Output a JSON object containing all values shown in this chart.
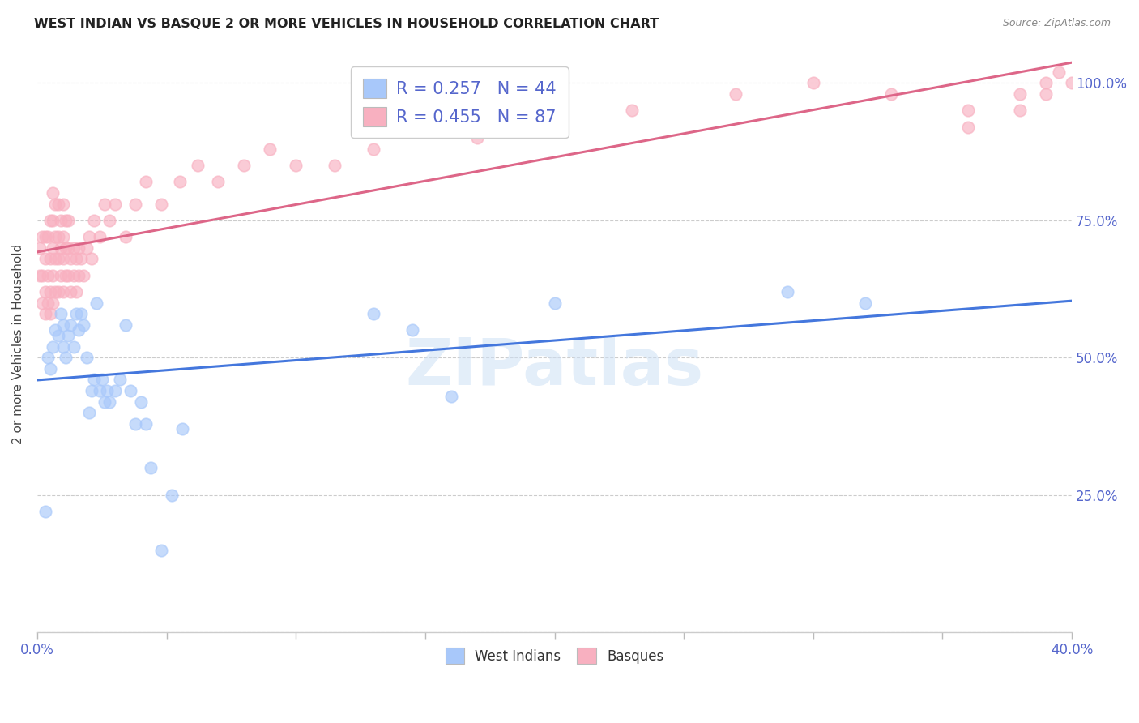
{
  "title": "WEST INDIAN VS BASQUE 2 OR MORE VEHICLES IN HOUSEHOLD CORRELATION CHART",
  "source": "Source: ZipAtlas.com",
  "ylabel": "2 or more Vehicles in Household",
  "x_min": 0.0,
  "x_max": 0.4,
  "y_min": 0.0,
  "y_max": 1.05,
  "x_ticks": [
    0.0,
    0.05,
    0.1,
    0.15,
    0.2,
    0.25,
    0.3,
    0.35,
    0.4
  ],
  "x_tick_labels": [
    "0.0%",
    "",
    "",
    "",
    "",
    "",
    "",
    "",
    "40.0%"
  ],
  "y_ticks": [
    0.0,
    0.25,
    0.5,
    0.75,
    1.0
  ],
  "y_tick_labels": [
    "",
    "25.0%",
    "50.0%",
    "75.0%",
    "100.0%"
  ],
  "r_west": 0.257,
  "n_west": 44,
  "r_basque": 0.455,
  "n_basque": 87,
  "west_color": "#a8c8fa",
  "basque_color": "#f8b0c0",
  "west_line_color": "#4477dd",
  "basque_line_color": "#dd6688",
  "watermark": "ZIPatlas",
  "west_x": [
    0.003,
    0.004,
    0.005,
    0.006,
    0.007,
    0.008,
    0.009,
    0.01,
    0.01,
    0.011,
    0.012,
    0.013,
    0.014,
    0.015,
    0.016,
    0.017,
    0.018,
    0.019,
    0.02,
    0.021,
    0.022,
    0.023,
    0.024,
    0.025,
    0.026,
    0.027,
    0.028,
    0.03,
    0.032,
    0.034,
    0.036,
    0.038,
    0.04,
    0.042,
    0.044,
    0.048,
    0.052,
    0.056,
    0.13,
    0.145,
    0.16,
    0.2,
    0.29,
    0.32
  ],
  "west_y": [
    0.22,
    0.5,
    0.48,
    0.52,
    0.55,
    0.54,
    0.58,
    0.52,
    0.56,
    0.5,
    0.54,
    0.56,
    0.52,
    0.58,
    0.55,
    0.58,
    0.56,
    0.5,
    0.4,
    0.44,
    0.46,
    0.6,
    0.44,
    0.46,
    0.42,
    0.44,
    0.42,
    0.44,
    0.46,
    0.56,
    0.44,
    0.38,
    0.42,
    0.38,
    0.3,
    0.15,
    0.25,
    0.37,
    0.58,
    0.55,
    0.43,
    0.6,
    0.62,
    0.6
  ],
  "basque_x": [
    0.001,
    0.001,
    0.002,
    0.002,
    0.002,
    0.003,
    0.003,
    0.003,
    0.003,
    0.004,
    0.004,
    0.004,
    0.005,
    0.005,
    0.005,
    0.005,
    0.006,
    0.006,
    0.006,
    0.006,
    0.006,
    0.007,
    0.007,
    0.007,
    0.007,
    0.008,
    0.008,
    0.008,
    0.008,
    0.009,
    0.009,
    0.009,
    0.01,
    0.01,
    0.01,
    0.01,
    0.011,
    0.011,
    0.011,
    0.012,
    0.012,
    0.012,
    0.013,
    0.013,
    0.014,
    0.014,
    0.015,
    0.015,
    0.016,
    0.016,
    0.017,
    0.018,
    0.019,
    0.02,
    0.021,
    0.022,
    0.024,
    0.026,
    0.028,
    0.03,
    0.034,
    0.038,
    0.042,
    0.048,
    0.055,
    0.062,
    0.07,
    0.08,
    0.09,
    0.1,
    0.115,
    0.13,
    0.15,
    0.17,
    0.2,
    0.23,
    0.27,
    0.3,
    0.33,
    0.36,
    0.38,
    0.39,
    0.395,
    0.36,
    0.38,
    0.39,
    0.4
  ],
  "basque_y": [
    0.65,
    0.7,
    0.6,
    0.65,
    0.72,
    0.58,
    0.62,
    0.68,
    0.72,
    0.6,
    0.65,
    0.72,
    0.58,
    0.62,
    0.68,
    0.75,
    0.6,
    0.65,
    0.7,
    0.75,
    0.8,
    0.62,
    0.68,
    0.72,
    0.78,
    0.62,
    0.68,
    0.72,
    0.78,
    0.65,
    0.7,
    0.75,
    0.62,
    0.68,
    0.72,
    0.78,
    0.65,
    0.7,
    0.75,
    0.65,
    0.7,
    0.75,
    0.62,
    0.68,
    0.65,
    0.7,
    0.62,
    0.68,
    0.65,
    0.7,
    0.68,
    0.65,
    0.7,
    0.72,
    0.68,
    0.75,
    0.72,
    0.78,
    0.75,
    0.78,
    0.72,
    0.78,
    0.82,
    0.78,
    0.82,
    0.85,
    0.82,
    0.85,
    0.88,
    0.85,
    0.85,
    0.88,
    0.92,
    0.9,
    0.92,
    0.95,
    0.98,
    1.0,
    0.98,
    0.95,
    0.98,
    1.0,
    1.02,
    0.92,
    0.95,
    0.98,
    1.0
  ]
}
